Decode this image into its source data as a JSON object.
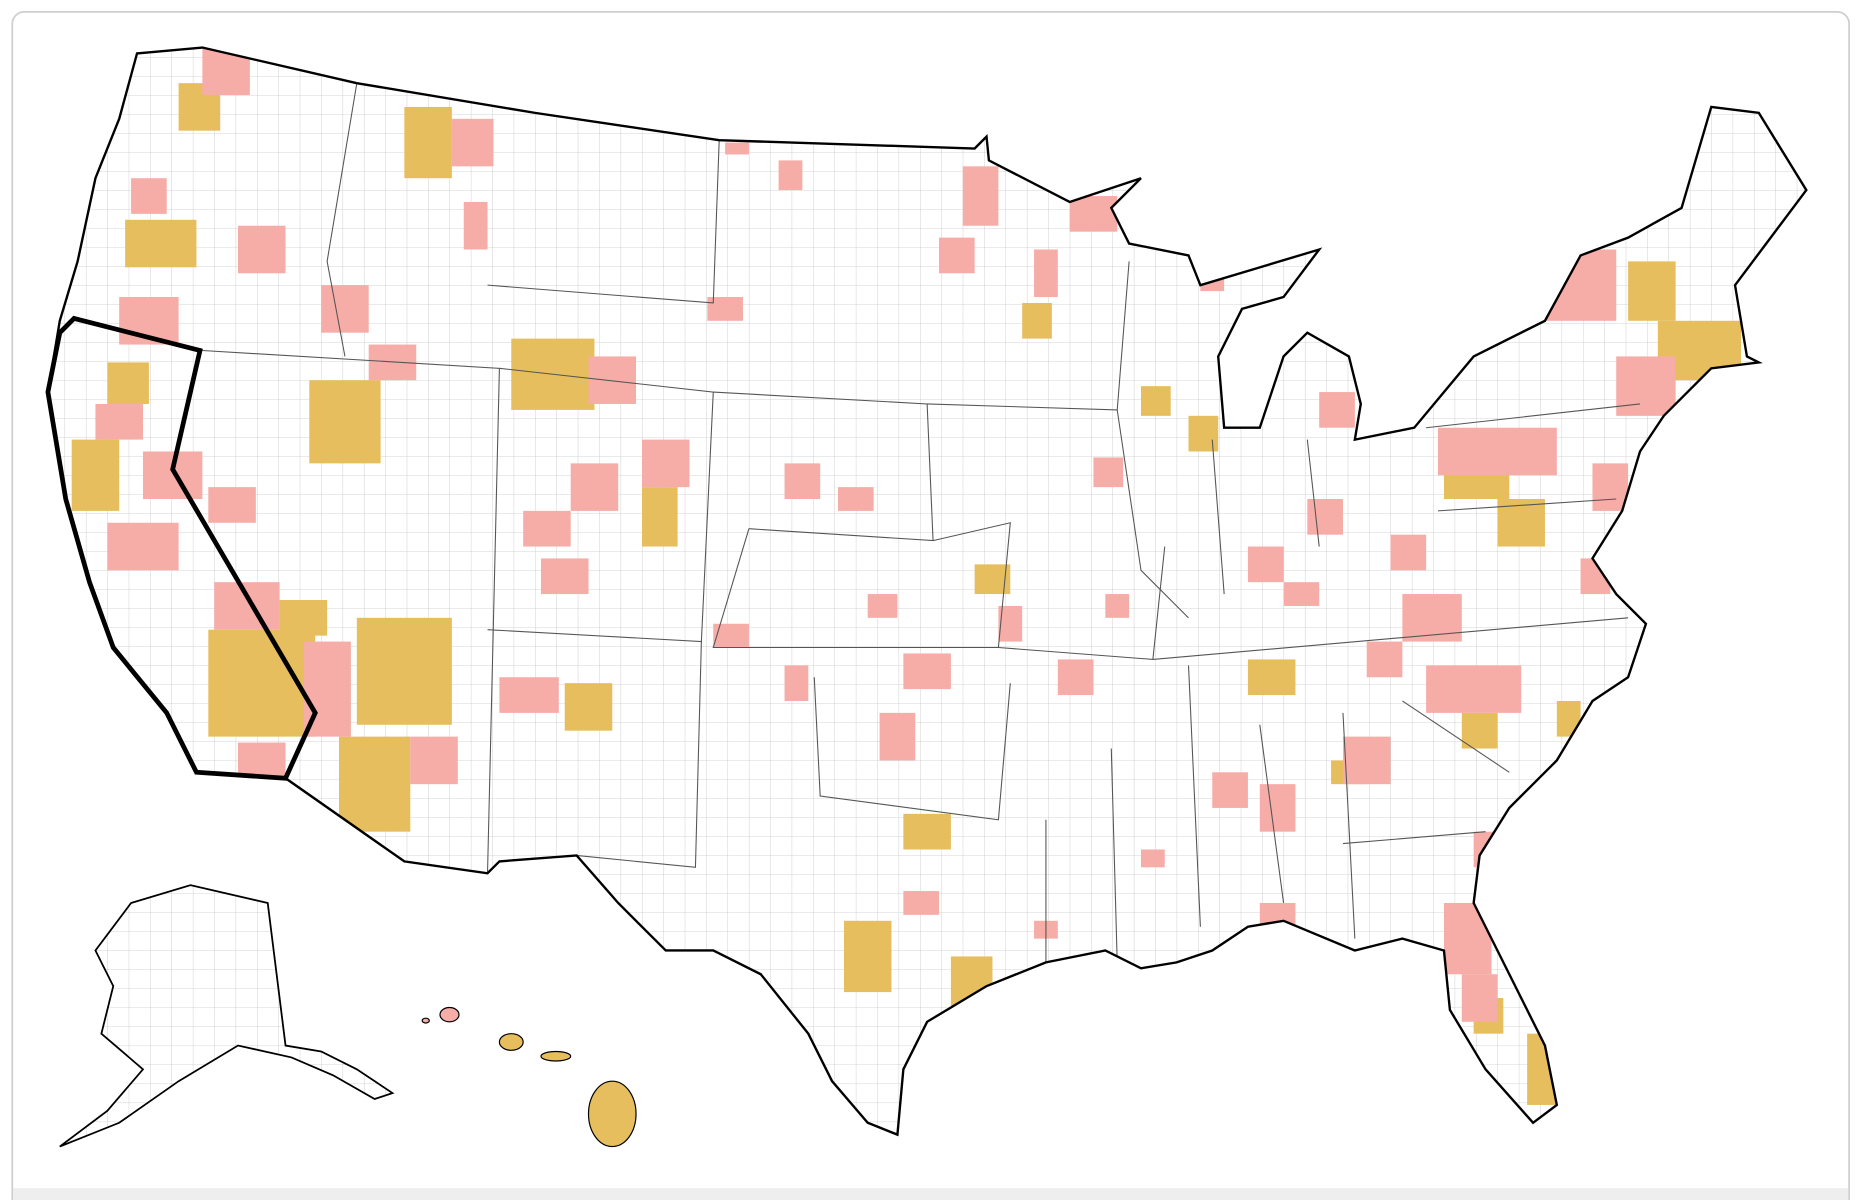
{
  "map": {
    "fill_colors": [
      "#f6aca7",
      "#e6be5e"
    ],
    "outline_color": "#000000",
    "county_line_color": "#c8c8c8"
  }
}
